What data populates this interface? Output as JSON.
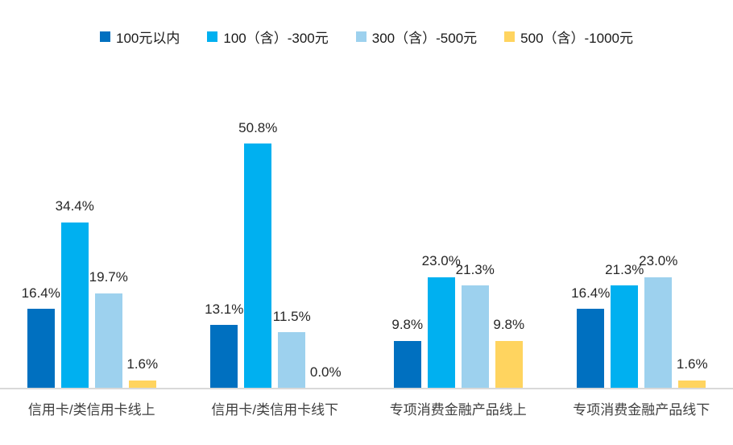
{
  "chart_data": {
    "type": "bar",
    "title": "",
    "categories": [
      "信用卡/类信用卡线上",
      "信用卡/类信用卡线下",
      "专项消费金融产品线上",
      "专项消费金融产品线下"
    ],
    "series": [
      {
        "name": "100元以内",
        "color": "#0070C0",
        "values": [
          16.4,
          13.1,
          9.8,
          16.4
        ]
      },
      {
        "name": "100（含）-300元",
        "color": "#00B0F0",
        "values": [
          34.4,
          50.8,
          23.0,
          21.3
        ]
      },
      {
        "name": "300（含）-500元",
        "color": "#9DD1EE",
        "values": [
          19.7,
          11.5,
          21.3,
          23.0
        ]
      },
      {
        "name": "500（含）-1000元",
        "color": "#FFD45F",
        "values": [
          1.6,
          0.0,
          9.8,
          1.6
        ]
      }
    ],
    "value_label_format": "one_decimal_percent",
    "ylabel": "",
    "xlabel": "",
    "ylim": [
      0,
      57
    ],
    "grid": false,
    "legend_position": "top",
    "axis_line_color": "#D9D9D9"
  }
}
